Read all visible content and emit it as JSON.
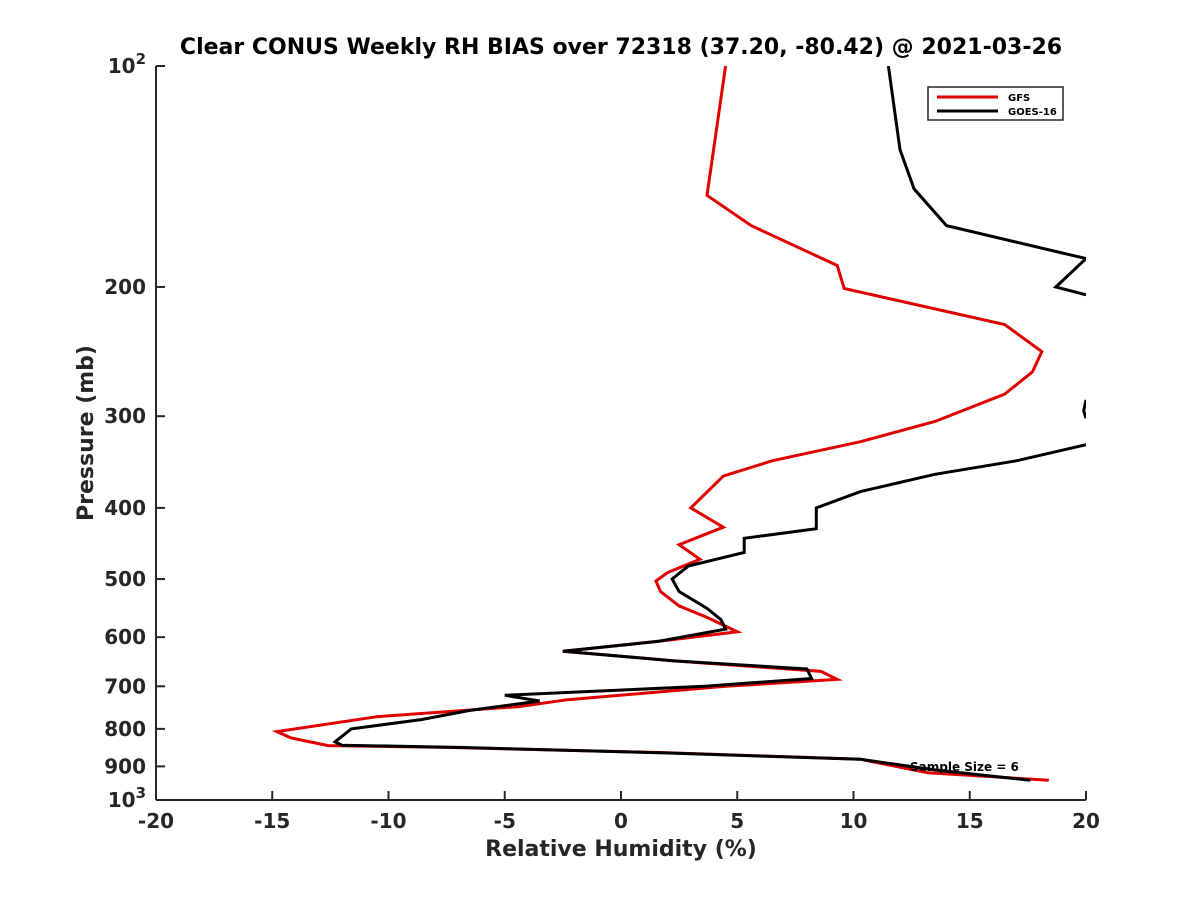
{
  "chart_data": {
    "type": "line",
    "title": "Clear CONUS Weekly RH BIAS over 72318 (37.20, -80.42) @ 2021-03-26",
    "xlabel": "Relative Humidity (%)",
    "ylabel": "Pressure (mb)",
    "xlim": [
      -20,
      20
    ],
    "ylim": [
      100,
      1000
    ],
    "y_scale": "log",
    "y_reversed": true,
    "grid": false,
    "legend_position": "top-right",
    "x_ticks": [
      "-20",
      "-15",
      "-10",
      "-5",
      "0",
      "5",
      "10",
      "15",
      "20"
    ],
    "y_ticks": [
      {
        "value": 100,
        "base": "10",
        "exp": "2"
      },
      {
        "value": 200,
        "label": "200"
      },
      {
        "value": 300,
        "label": "300"
      },
      {
        "value": 400,
        "label": "400"
      },
      {
        "value": 500,
        "label": "500"
      },
      {
        "value": 600,
        "label": "600"
      },
      {
        "value": 700,
        "label": "700"
      },
      {
        "value": 800,
        "label": "800"
      },
      {
        "value": 900,
        "label": "900"
      },
      {
        "value": 1000,
        "base": "10",
        "exp": "3"
      }
    ],
    "annotation": "Sample Size = 6",
    "series": [
      {
        "name": "GFS",
        "color": "#e00000",
        "points": [
          [
            4.5,
            100
          ],
          [
            3.7,
            150
          ],
          [
            5.6,
            165
          ],
          [
            9.3,
            187
          ],
          [
            9.6,
            201
          ],
          [
            16.5,
            225
          ],
          [
            18.1,
            245
          ],
          [
            17.7,
            261
          ],
          [
            16.5,
            280
          ],
          [
            13.5,
            305
          ],
          [
            10.3,
            325
          ],
          [
            6.5,
            345
          ],
          [
            4.4,
            362
          ],
          [
            3.0,
            400
          ],
          [
            4.4,
            425
          ],
          [
            2.5,
            449
          ],
          [
            3.4,
            470
          ],
          [
            2.0,
            490
          ],
          [
            1.5,
            503
          ],
          [
            1.7,
            520
          ],
          [
            2.5,
            544
          ],
          [
            3.7,
            564
          ],
          [
            5.0,
            590
          ],
          [
            2.0,
            606
          ],
          [
            -2.5,
            627
          ],
          [
            2.5,
            647
          ],
          [
            8.6,
            668
          ],
          [
            9.3,
            685
          ],
          [
            4.5,
            700
          ],
          [
            -2.3,
            730
          ],
          [
            -4.4,
            746
          ],
          [
            -10.5,
            770
          ],
          [
            -14.8,
            807
          ],
          [
            -14.2,
            823
          ],
          [
            -12.6,
            843
          ],
          [
            -7.5,
            848
          ],
          [
            2.0,
            862
          ],
          [
            10.3,
            880
          ],
          [
            13.2,
            918
          ],
          [
            18.4,
            940
          ]
        ]
      },
      {
        "name": "GOES-16",
        "color": "#000000",
        "segments": [
          [
            [
              11.5,
              100
            ],
            [
              12.0,
              130
            ],
            [
              12.6,
              147
            ],
            [
              14.0,
              165
            ],
            [
              20.0,
              183
            ],
            [
              18.7,
              200
            ],
            [
              20.0,
              205
            ]
          ],
          [
            [
              20.0,
              285
            ],
            [
              19.9,
              295
            ],
            [
              20.0,
              302
            ]
          ],
          [
            [
              20.0,
              328
            ],
            [
              17.0,
              345
            ],
            [
              13.5,
              360
            ],
            [
              10.3,
              380
            ],
            [
              8.4,
              400
            ],
            [
              8.4,
              427
            ],
            [
              5.3,
              440
            ],
            [
              5.3,
              460
            ],
            [
              2.9,
              480
            ],
            [
              2.2,
              500
            ],
            [
              2.5,
              520
            ],
            [
              3.7,
              548
            ],
            [
              4.3,
              568
            ],
            [
              4.5,
              585
            ],
            [
              1.6,
              608
            ],
            [
              -2.5,
              627
            ],
            [
              2.2,
              646
            ],
            [
              8.0,
              663
            ],
            [
              8.2,
              683
            ],
            [
              3.6,
              700
            ],
            [
              -5.0,
              720
            ],
            [
              -3.5,
              733
            ],
            [
              -6.5,
              755
            ],
            [
              -8.6,
              777
            ],
            [
              -11.6,
              800
            ],
            [
              -12.3,
              833
            ],
            [
              -12.0,
              842
            ],
            [
              -7.0,
              848
            ],
            [
              2.0,
              863
            ],
            [
              10.3,
              880
            ],
            [
              13.5,
              910
            ],
            [
              17.6,
              940
            ]
          ]
        ]
      }
    ]
  }
}
